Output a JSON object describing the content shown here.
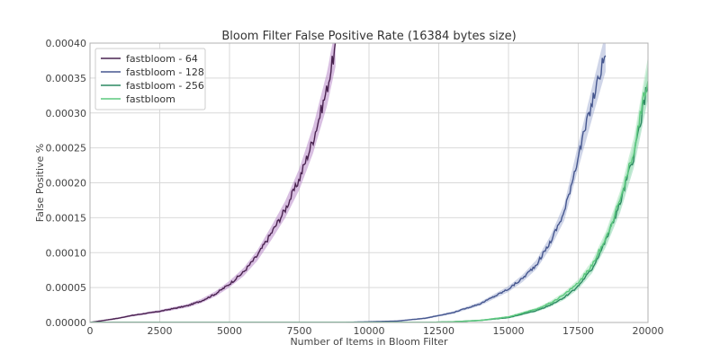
{
  "chart_data": {
    "type": "line",
    "title": "Bloom Filter False Positive Rate (16384 bytes size)",
    "xlabel": "Number of Items in Bloom Filter",
    "ylabel": "False Positive %",
    "xlim": [
      0,
      20000
    ],
    "ylim": [
      0,
      0.0004
    ],
    "grid": true,
    "legend_position": "top-left",
    "x_ticks": [
      0,
      2500,
      5000,
      7500,
      10000,
      12500,
      15000,
      17500,
      20000
    ],
    "x_tick_labels": [
      "0",
      "2500",
      "5000",
      "7500",
      "10000",
      "12500",
      "15000",
      "17500",
      "20000"
    ],
    "y_ticks": [
      0,
      5e-05,
      0.0001,
      0.00015,
      0.0002,
      0.00025,
      0.0003,
      0.00035,
      0.0004
    ],
    "y_tick_labels": [
      "0.00000",
      "0.00005",
      "0.00010",
      "0.00015",
      "0.00020",
      "0.00025",
      "0.00030",
      "0.00035",
      "0.00040"
    ],
    "series": [
      {
        "name": "fastbloom - 64",
        "color": "#4a2350",
        "band_color": "#b888c8",
        "x": [
          0,
          500,
          1000,
          1500,
          2000,
          2500,
          3000,
          3500,
          4000,
          4500,
          5000,
          5500,
          6000,
          6500,
          7000,
          7500,
          8000,
          8500,
          8800
        ],
        "y": [
          0,
          3e-06,
          6e-06,
          1e-05,
          1.3e-05,
          1.6e-05,
          2e-05,
          2.4e-05,
          3.1e-05,
          4.1e-05,
          5.5e-05,
          7.2e-05,
          9.6e-05,
          0.000128,
          0.000162,
          0.000205,
          0.000262,
          0.000335,
          0.000395
        ]
      },
      {
        "name": "fastbloom - 128",
        "color": "#46578f",
        "band_color": "#a7b3d6",
        "x": [
          0,
          5000,
          9000,
          10000,
          11000,
          12000,
          13000,
          14000,
          15000,
          15500,
          16000,
          16500,
          17000,
          17500,
          18000,
          18500
        ],
        "y": [
          0,
          0,
          0,
          1e-06,
          2e-06,
          6e-06,
          1.4e-05,
          2.7e-05,
          4.8e-05,
          6.3e-05,
          8.3e-05,
          0.000115,
          0.000158,
          0.000238,
          0.000315,
          0.00039
        ]
      },
      {
        "name": "fastbloom - 256",
        "color": "#2c8a62",
        "band_color": "#8fd6b2",
        "x": [
          0,
          12000,
          13000,
          14000,
          15000,
          16000,
          16500,
          17000,
          17500,
          18000,
          18500,
          19000,
          19500,
          20000
        ],
        "y": [
          0,
          0,
          1e-06,
          3e-06,
          7e-06,
          1.7e-05,
          2.5e-05,
          3.6e-05,
          5.2e-05,
          7.7e-05,
          0.000118,
          0.00017,
          0.00024,
          0.000345
        ]
      },
      {
        "name": "fastbloom",
        "color": "#5cc97e",
        "band_color": "#a9e6bd",
        "x": [
          0,
          12000,
          13000,
          14000,
          15000,
          16000,
          16500,
          17000,
          17500,
          18000,
          18500,
          19000,
          19500,
          20000
        ],
        "y": [
          0,
          0,
          1e-06,
          3e-06,
          8e-06,
          1.9e-05,
          2.8e-05,
          4e-05,
          5.7e-05,
          8.2e-05,
          0.000122,
          0.000175,
          0.000248,
          0.000355
        ]
      }
    ]
  }
}
